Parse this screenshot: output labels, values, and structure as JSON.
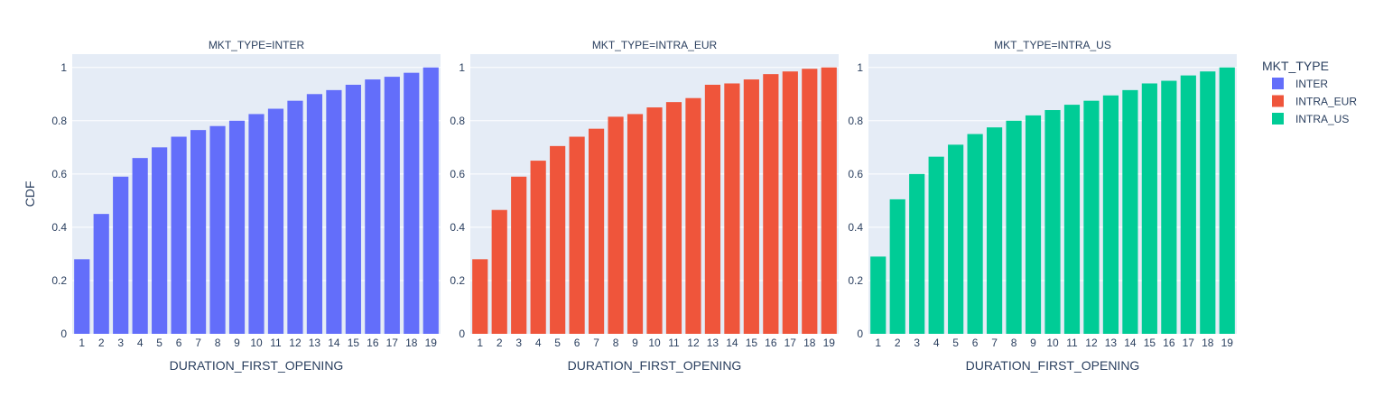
{
  "chart_data": {
    "type": "bar",
    "ylabel": "CDF",
    "ylim": [
      0,
      1.05
    ],
    "yticks": [
      0,
      0.2,
      0.4,
      0.6,
      0.8,
      1
    ],
    "ytick_labels": [
      "0",
      "0.2",
      "0.4",
      "0.6",
      "0.8",
      "1"
    ],
    "grid": true,
    "legend": {
      "title": "MKT_TYPE",
      "placement": "right",
      "entries": [
        {
          "name": "INTER",
          "color": "#636EFA"
        },
        {
          "name": "INTRA_EUR",
          "color": "#EF553B"
        },
        {
          "name": "INTRA_US",
          "color": "#00CC96"
        }
      ]
    },
    "panels": [
      {
        "title": "MKT_TYPE=INTER",
        "xlabel": "DURATION_FIRST_OPENING",
        "series": "INTER",
        "color": "#636EFA",
        "categories": [
          "1",
          "2",
          "3",
          "4",
          "5",
          "6",
          "7",
          "8",
          "9",
          "10",
          "11",
          "12",
          "13",
          "14",
          "15",
          "16",
          "17",
          "18",
          "19"
        ],
        "values": [
          0.28,
          0.45,
          0.59,
          0.66,
          0.7,
          0.74,
          0.765,
          0.78,
          0.8,
          0.825,
          0.845,
          0.875,
          0.9,
          0.915,
          0.935,
          0.955,
          0.965,
          0.98,
          1.0
        ]
      },
      {
        "title": "MKT_TYPE=INTRA_EUR",
        "xlabel": "DURATION_FIRST_OPENING",
        "series": "INTRA_EUR",
        "color": "#EF553B",
        "categories": [
          "1",
          "2",
          "3",
          "4",
          "5",
          "6",
          "7",
          "8",
          "9",
          "10",
          "11",
          "12",
          "13",
          "14",
          "15",
          "16",
          "17",
          "18",
          "19"
        ],
        "values": [
          0.28,
          0.465,
          0.59,
          0.65,
          0.705,
          0.74,
          0.77,
          0.815,
          0.825,
          0.85,
          0.87,
          0.885,
          0.935,
          0.94,
          0.955,
          0.975,
          0.985,
          0.995,
          1.0
        ]
      },
      {
        "title": "MKT_TYPE=INTRA_US",
        "xlabel": "DURATION_FIRST_OPENING",
        "series": "INTRA_US",
        "color": "#00CC96",
        "categories": [
          "1",
          "2",
          "3",
          "4",
          "5",
          "6",
          "7",
          "8",
          "9",
          "10",
          "11",
          "12",
          "13",
          "14",
          "15",
          "16",
          "17",
          "18",
          "19"
        ],
        "values": [
          0.29,
          0.505,
          0.6,
          0.665,
          0.71,
          0.75,
          0.775,
          0.8,
          0.82,
          0.84,
          0.86,
          0.875,
          0.895,
          0.915,
          0.94,
          0.95,
          0.97,
          0.985,
          1.0
        ]
      }
    ]
  }
}
